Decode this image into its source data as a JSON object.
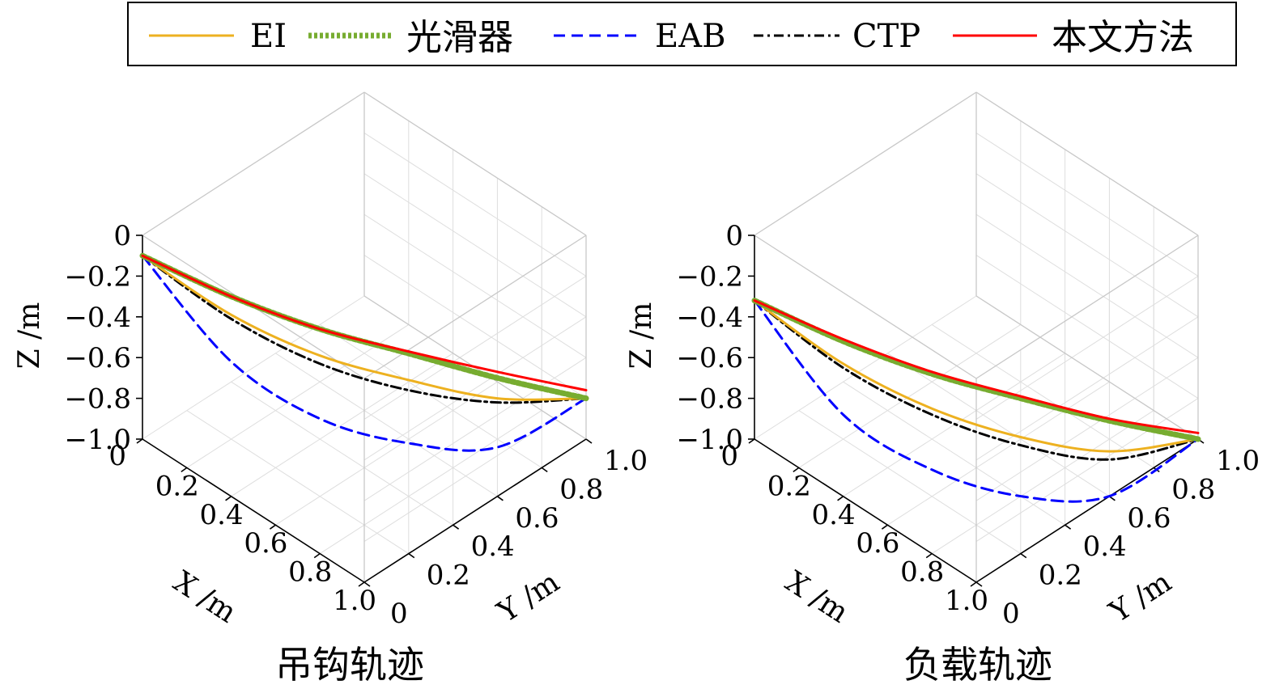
{
  "legend": {
    "placement": "top",
    "entries": [
      {
        "label": "EI",
        "color": "#EDB120",
        "dash": "solid"
      },
      {
        "label": "光滑器",
        "color": "#77AC30",
        "dash": "dotted"
      },
      {
        "label": "EAB",
        "color": "#0000FF",
        "dash": "dashed"
      },
      {
        "label": "CTP",
        "color": "#000000",
        "dash": "dashdot"
      },
      {
        "label": "本文方法",
        "color": "#FF0000",
        "dash": "solid"
      }
    ]
  },
  "chart_data": [
    {
      "type": "line3d",
      "title": "吊钩轨迹",
      "xlabel": "X /m",
      "ylabel": "Y /m",
      "zlabel": "Z /m",
      "xlim": [
        0,
        1.0
      ],
      "ylim": [
        0,
        1.0
      ],
      "zlim": [
        -1.0,
        0
      ],
      "xticks": [
        "0",
        "0.2",
        "0.4",
        "0.6",
        "0.8",
        "1.0"
      ],
      "yticks": [
        "0",
        "0.2",
        "0.4",
        "0.6",
        "0.8",
        "1.0"
      ],
      "zticks": [
        "0",
        "−0.2",
        "−0.4",
        "−0.6",
        "−0.8",
        "−1.0"
      ],
      "grid": true,
      "series": [
        {
          "name": "EI",
          "x": [
            0.0,
            0.2,
            0.4,
            0.6,
            0.8,
            1.0
          ],
          "y": [
            0.0,
            0.2,
            0.4,
            0.6,
            0.8,
            1.0
          ],
          "z": [
            -0.1,
            -0.39,
            -0.59,
            -0.71,
            -0.8,
            -0.8
          ]
        },
        {
          "name": "光滑器",
          "x": [
            0.0,
            0.2,
            0.4,
            0.6,
            0.8,
            1.0
          ],
          "y": [
            0.0,
            0.2,
            0.4,
            0.6,
            0.8,
            1.0
          ],
          "z": [
            -0.1,
            -0.3,
            -0.46,
            -0.58,
            -0.7,
            -0.8
          ]
        },
        {
          "name": "EAB",
          "x": [
            0.0,
            0.2,
            0.4,
            0.6,
            0.8,
            1.0
          ],
          "y": [
            0.0,
            0.2,
            0.4,
            0.6,
            0.8,
            1.0
          ],
          "z": [
            -0.1,
            -0.62,
            -0.9,
            -1.02,
            -1.04,
            -0.8
          ]
        },
        {
          "name": "CTP",
          "x": [
            0.0,
            0.2,
            0.4,
            0.6,
            0.8,
            1.0
          ],
          "y": [
            0.0,
            0.2,
            0.4,
            0.6,
            0.8,
            1.0
          ],
          "z": [
            -0.1,
            -0.41,
            -0.63,
            -0.76,
            -0.82,
            -0.8
          ]
        },
        {
          "name": "本文方法",
          "x": [
            0.0,
            0.2,
            0.4,
            0.6,
            0.8,
            1.0
          ],
          "y": [
            0.0,
            0.2,
            0.4,
            0.6,
            0.8,
            1.0
          ],
          "z": [
            -0.1,
            -0.3,
            -0.46,
            -0.57,
            -0.67,
            -0.76
          ]
        }
      ]
    },
    {
      "type": "line3d",
      "title": "负载轨迹",
      "xlabel": "X /m",
      "ylabel": "Y /m",
      "zlabel": "Z /m",
      "xlim": [
        0,
        1.0
      ],
      "ylim": [
        0,
        1.0
      ],
      "zlim": [
        -1.0,
        0
      ],
      "xticks": [
        "0",
        "0.2",
        "0.4",
        "0.6",
        "0.8",
        "1.0"
      ],
      "yticks": [
        "0",
        "0.2",
        "0.4",
        "0.6",
        "0.8",
        "1.0"
      ],
      "zticks": [
        "0",
        "−0.2",
        "−0.4",
        "−0.6",
        "−0.8",
        "−1.0"
      ],
      "grid": true,
      "series": [
        {
          "name": "EI",
          "x": [
            0.0,
            0.2,
            0.4,
            0.6,
            0.8,
            1.0
          ],
          "y": [
            0.0,
            0.2,
            0.4,
            0.6,
            0.8,
            1.0
          ],
          "z": [
            -0.32,
            -0.63,
            -0.85,
            -0.99,
            -1.06,
            -1.0
          ]
        },
        {
          "name": "光滑器",
          "x": [
            0.0,
            0.2,
            0.4,
            0.6,
            0.8,
            1.0
          ],
          "y": [
            0.0,
            0.2,
            0.4,
            0.6,
            0.8,
            1.0
          ],
          "z": [
            -0.32,
            -0.52,
            -0.68,
            -0.8,
            -0.91,
            -1.0
          ]
        },
        {
          "name": "EAB",
          "x": [
            0.0,
            0.2,
            0.4,
            0.6,
            0.8,
            1.0
          ],
          "y": [
            0.0,
            0.2,
            0.4,
            0.6,
            0.8,
            1.0
          ],
          "z": [
            -0.32,
            -0.88,
            -1.15,
            -1.28,
            -1.28,
            -1.0
          ]
        },
        {
          "name": "CTP",
          "x": [
            0.0,
            0.2,
            0.4,
            0.6,
            0.8,
            1.0
          ],
          "y": [
            0.0,
            0.2,
            0.4,
            0.6,
            0.8,
            1.0
          ],
          "z": [
            -0.32,
            -0.65,
            -0.88,
            -1.03,
            -1.1,
            -1.0
          ]
        },
        {
          "name": "本文方法",
          "x": [
            0.0,
            0.2,
            0.4,
            0.6,
            0.8,
            1.0
          ],
          "y": [
            0.0,
            0.2,
            0.4,
            0.6,
            0.8,
            1.0
          ],
          "z": [
            -0.32,
            -0.51,
            -0.67,
            -0.79,
            -0.9,
            -0.97
          ]
        }
      ]
    }
  ]
}
